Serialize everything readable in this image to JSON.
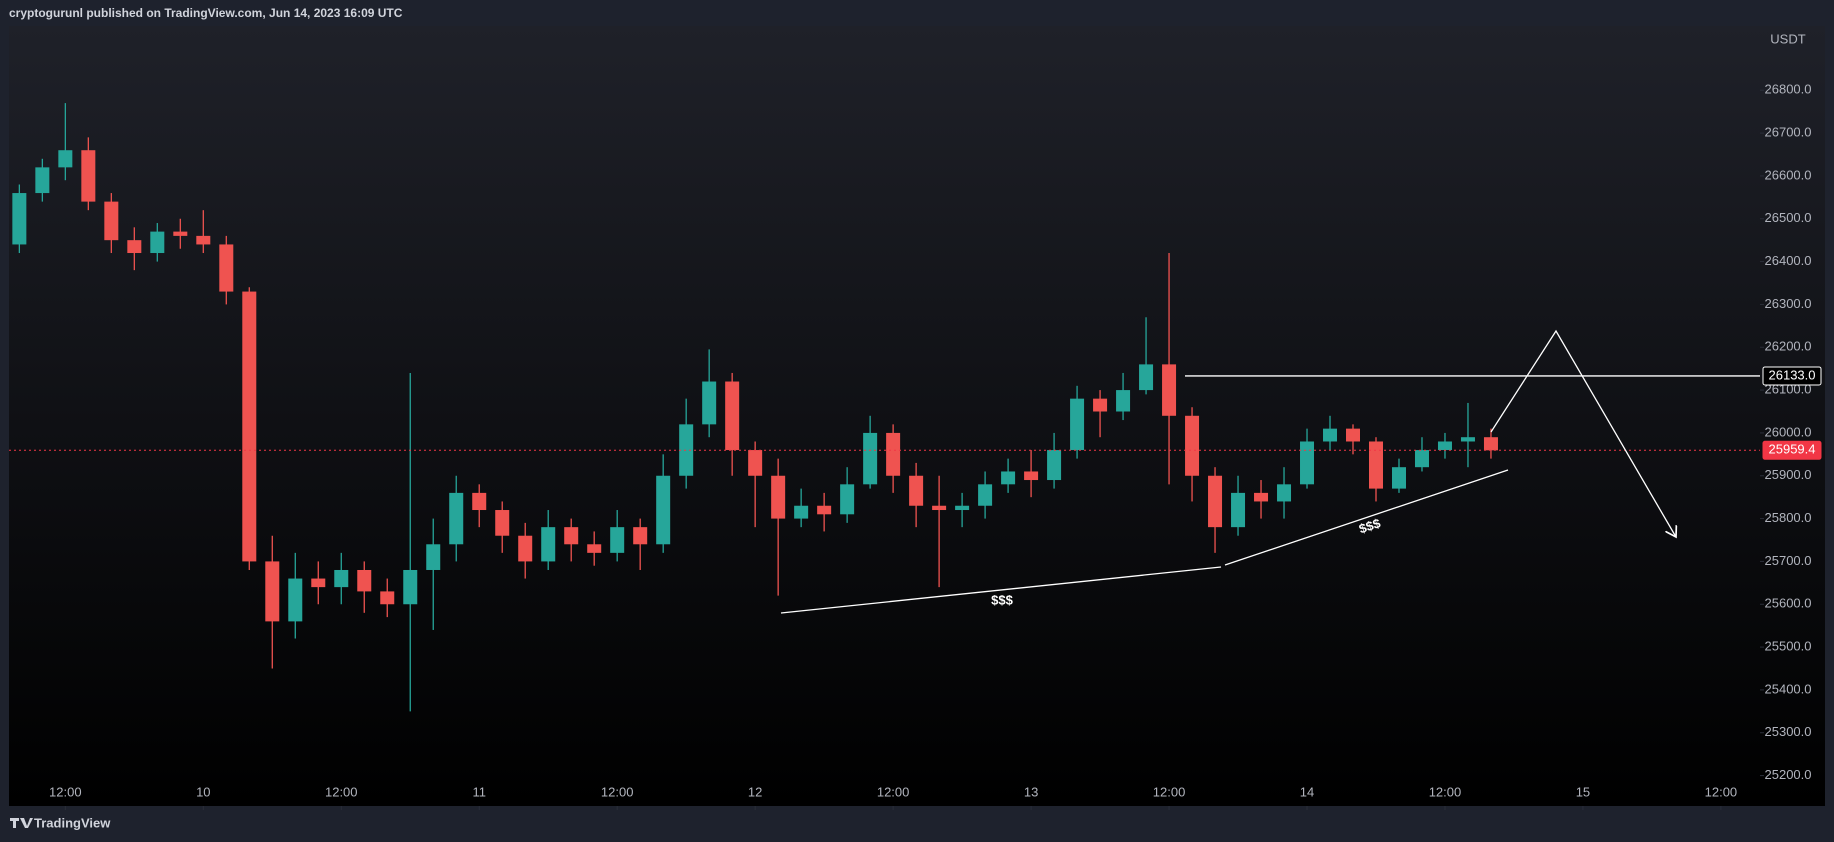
{
  "chart_data": {
    "type": "candlestick",
    "title": "cryptogurunl published on TradingView.com, Jun 14, 2023 16:09 UTC",
    "brand": "TradingView",
    "y_axis_label": "USDT",
    "up_color": "#26a69a",
    "down_color": "#ef5350",
    "xlim": [
      7.1,
      159.4
    ],
    "xticks": [
      {
        "value": 12,
        "label": "12:00"
      },
      {
        "value": 24,
        "label": "10"
      },
      {
        "value": 36,
        "label": "12:00"
      },
      {
        "value": 48,
        "label": "11"
      },
      {
        "value": 60,
        "label": "12:00"
      },
      {
        "value": 72,
        "label": "12"
      },
      {
        "value": 84,
        "label": "12:00"
      },
      {
        "value": 96,
        "label": "13"
      },
      {
        "value": 108,
        "label": "12:00"
      },
      {
        "value": 120,
        "label": "14"
      },
      {
        "value": 132,
        "label": "12:00"
      },
      {
        "value": 144,
        "label": "15"
      },
      {
        "value": 156,
        "label": "12:00"
      }
    ],
    "ylim": [
      25129,
      26950
    ],
    "yticks": [
      {
        "value": 25200,
        "label": "25200.0"
      },
      {
        "value": 25300,
        "label": "25300.0"
      },
      {
        "value": 25400,
        "label": "25400.0"
      },
      {
        "value": 25500,
        "label": "25500.0"
      },
      {
        "value": 25600,
        "label": "25600.0"
      },
      {
        "value": 25700,
        "label": "25700.0"
      },
      {
        "value": 25800,
        "label": "25800.0"
      },
      {
        "value": 25900,
        "label": "25900.0"
      },
      {
        "value": 26000,
        "label": "26000.0"
      },
      {
        "value": 26100,
        "label": "26100.0"
      },
      {
        "value": 26200,
        "label": "26200.0"
      },
      {
        "value": 26300,
        "label": "26300.0"
      },
      {
        "value": 26400,
        "label": "26400.0"
      },
      {
        "value": 26500,
        "label": "26500.0"
      },
      {
        "value": 26600,
        "label": "26600.0"
      },
      {
        "value": 26700,
        "label": "26700.0"
      },
      {
        "value": 26800,
        "label": "26800.0"
      }
    ],
    "candles": {
      "x": [
        8,
        10,
        12,
        14,
        16,
        18,
        20,
        22,
        24,
        26,
        28,
        30,
        32,
        34,
        36,
        38,
        40,
        42,
        44,
        46,
        48,
        50,
        52,
        54,
        56,
        58,
        60,
        62,
        64,
        66,
        68,
        70,
        72,
        74,
        76,
        78,
        80,
        82,
        84,
        86,
        88,
        90,
        92,
        94,
        96,
        98,
        100,
        102,
        104,
        106,
        108,
        110,
        112,
        114,
        116,
        118,
        120,
        122,
        124,
        126,
        128,
        130,
        132,
        134,
        136
      ],
      "open": [
        26440,
        26560,
        26620,
        26660,
        26540,
        26450,
        26420,
        26470,
        26460,
        26440,
        26330,
        25700,
        25560,
        25660,
        25640,
        25680,
        25630,
        25600,
        25680,
        25740,
        25860,
        25820,
        25760,
        25700,
        25780,
        25740,
        25720,
        25780,
        25740,
        25900,
        26020,
        26120,
        25960,
        25900,
        25800,
        25830,
        25810,
        25880,
        26000,
        25900,
        25830,
        25820,
        25830,
        25880,
        25910,
        25890,
        25960,
        26080,
        26050,
        26100,
        26160,
        26040,
        25900,
        25780,
        25860,
        25840,
        25880,
        25980,
        26010,
        25980,
        25870,
        25920,
        25960,
        25980,
        25990
      ],
      "high": [
        26580,
        26640,
        26770,
        26690,
        26560,
        26480,
        26490,
        26500,
        26520,
        26460,
        26340,
        25760,
        25720,
        25700,
        25720,
        25700,
        25660,
        26140,
        25800,
        25900,
        25880,
        25840,
        25790,
        25820,
        25800,
        25770,
        25820,
        25800,
        25950,
        26080,
        26195,
        26140,
        25980,
        25940,
        25870,
        25860,
        25920,
        26040,
        26020,
        25930,
        25900,
        25860,
        25910,
        25940,
        25960,
        26000,
        26110,
        26100,
        26140,
        26270,
        26420,
        26060,
        25920,
        25900,
        25890,
        25920,
        26010,
        26040,
        26020,
        25990,
        25940,
        25990,
        26000,
        26070,
        26010
      ],
      "low": [
        26420,
        26540,
        26590,
        26520,
        26420,
        26380,
        26400,
        26430,
        26420,
        26300,
        25680,
        25450,
        25520,
        25600,
        25600,
        25580,
        25570,
        25350,
        25540,
        25700,
        25780,
        25720,
        25660,
        25680,
        25700,
        25690,
        25700,
        25680,
        25720,
        25870,
        25990,
        25900,
        25780,
        25620,
        25780,
        25770,
        25790,
        25870,
        25860,
        25780,
        25640,
        25780,
        25800,
        25860,
        25850,
        25870,
        25940,
        25990,
        26030,
        26090,
        25880,
        25840,
        25720,
        25760,
        25800,
        25800,
        25870,
        25960,
        25950,
        25840,
        25860,
        25910,
        25940,
        25920,
        25940
      ],
      "close": [
        26560,
        26620,
        26660,
        26540,
        26450,
        26420,
        26470,
        26460,
        26440,
        26330,
        25700,
        25560,
        25660,
        25640,
        25680,
        25630,
        25600,
        25680,
        25740,
        25860,
        25820,
        25760,
        25700,
        25780,
        25740,
        25720,
        25780,
        25740,
        25900,
        26020,
        26120,
        25960,
        25900,
        25800,
        25830,
        25810,
        25880,
        26000,
        25900,
        25830,
        25820,
        25830,
        25880,
        25910,
        25890,
        25960,
        26080,
        26050,
        26100,
        26160,
        26040,
        25900,
        25780,
        25860,
        25840,
        25880,
        25980,
        26010,
        25980,
        25870,
        25920,
        25960,
        25980,
        25990,
        25959.4
      ]
    },
    "price_lines": [
      {
        "value": 26133,
        "label": "26133.0",
        "color": "#ffffff"
      },
      {
        "value": 25959.4,
        "label": "25959.4",
        "color": "#f23645"
      }
    ],
    "annotations": [
      "$$$",
      "$$$"
    ]
  }
}
